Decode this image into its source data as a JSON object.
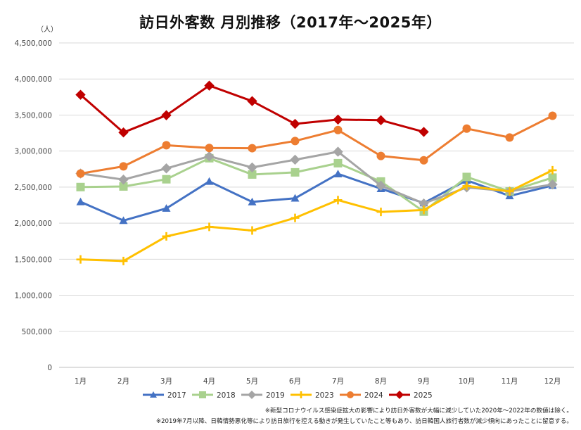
{
  "chart_data": {
    "type": "line",
    "title": "訪日外客数 月別推移（2017年～2025年）",
    "unit_label": "（人）",
    "categories": [
      "1月",
      "2月",
      "3月",
      "4月",
      "5月",
      "6月",
      "7月",
      "8月",
      "9月",
      "10月",
      "11月",
      "12月"
    ],
    "y_ticks": [
      "0",
      "500,000",
      "1,000,000",
      "1,500,000",
      "2,000,000",
      "2,500,000",
      "3,000,000",
      "3,500,000",
      "4,000,000",
      "4,500,000"
    ],
    "ylim": [
      0,
      4500000
    ],
    "grid": true,
    "legend_position": "bottom",
    "series": [
      {
        "name": "2017",
        "color": "#4472c4",
        "marker": "triangle",
        "values": [
          2296000,
          2036000,
          2205000,
          2579000,
          2295000,
          2346000,
          2683000,
          2478000,
          2280000,
          2595000,
          2378000,
          2522000
        ]
      },
      {
        "name": "2018",
        "color": "#a9d18e",
        "marker": "square",
        "values": [
          2501000,
          2509000,
          2609000,
          2901000,
          2675000,
          2705000,
          2832000,
          2578000,
          2160000,
          2641000,
          2441000,
          2632000
        ]
      },
      {
        "name": "2019",
        "color": "#a5a5a5",
        "marker": "diamond",
        "values": [
          2689000,
          2604000,
          2760000,
          2927000,
          2773000,
          2880000,
          2991000,
          2520000,
          2273000,
          2496000,
          2441000,
          2537000
        ]
      },
      {
        "name": "2023",
        "color": "#ffc000",
        "marker": "plus",
        "values": [
          1497000,
          1475000,
          1817000,
          1949000,
          1899000,
          2073000,
          2320000,
          2156000,
          2183000,
          2517000,
          2441000,
          2734000
        ]
      },
      {
        "name": "2024",
        "color": "#ed7d31",
        "marker": "circle",
        "values": [
          2688000,
          2788000,
          3081000,
          3043000,
          3040000,
          3140000,
          3292000,
          2932000,
          2872000,
          3312000,
          3188000,
          3490000
        ]
      },
      {
        "name": "2025",
        "color": "#c00000",
        "marker": "diamond",
        "values": [
          3781000,
          3258000,
          3497000,
          3908000,
          3693000,
          3377000,
          3437000,
          3428000,
          3266000,
          null,
          null,
          null
        ]
      }
    ]
  },
  "notes": {
    "line1": "※新型コロナウイルス感染症拡大の影響により訪日外客数が大幅に減少していた2020年～2022年の数値は除く。",
    "line2": "※2019年7月以降、日韓情勢悪化等により訪日旅行を控える動きが発生していたこと等もあり、訪日韓国人旅行者数が減少傾向にあったことに留意する。"
  }
}
